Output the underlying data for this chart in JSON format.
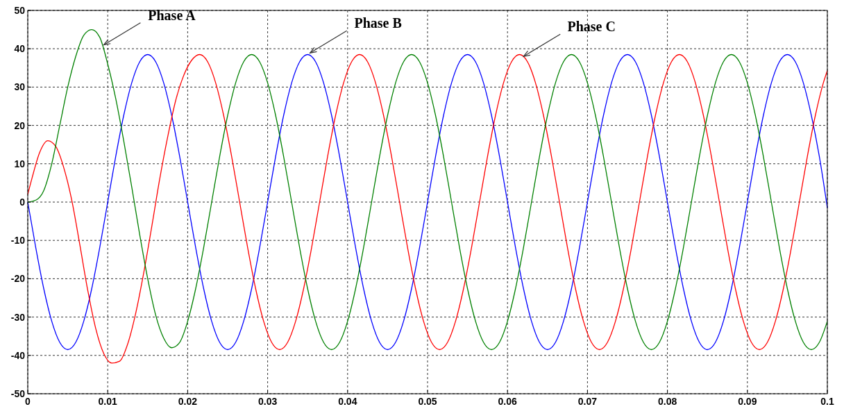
{
  "chart_data": {
    "type": "line",
    "xlim": [
      0,
      0.1
    ],
    "ylim": [
      -50,
      50
    ],
    "xticks": [
      0,
      0.01,
      0.02,
      0.03,
      0.04,
      0.05,
      0.06,
      0.07,
      0.08,
      0.09,
      0.1
    ],
    "yticks": [
      -50,
      -40,
      -30,
      -20,
      -10,
      0,
      10,
      20,
      30,
      40,
      50
    ],
    "grid": true,
    "line_style": "solid",
    "marker": "none",
    "annotations": [
      {
        "text": "Phase A",
        "x": 0.0095,
        "y": 41
      },
      {
        "text": "Phase B",
        "x": 0.0353,
        "y": 38.9
      },
      {
        "text": "Phase C",
        "x": 0.062,
        "y": 38
      }
    ],
    "x": [
      0,
      0.001,
      0.002,
      0.003,
      0.004,
      0.005,
      0.006,
      0.007,
      0.008,
      0.009,
      0.01,
      0.011,
      0.012,
      0.013,
      0.014,
      0.015,
      0.016,
      0.017,
      0.018,
      0.019,
      0.02,
      0.021,
      0.022,
      0.023,
      0.024,
      0.025,
      0.026,
      0.027,
      0.028,
      0.029,
      0.03,
      0.031,
      0.032,
      0.033,
      0.034,
      0.035,
      0.036,
      0.037,
      0.038,
      0.039,
      0.04,
      0.041,
      0.042,
      0.043,
      0.044,
      0.045,
      0.046,
      0.047,
      0.048,
      0.049,
      0.05,
      0.051,
      0.052,
      0.053,
      0.054,
      0.055,
      0.056,
      0.057,
      0.058,
      0.059,
      0.06,
      0.061,
      0.062,
      0.063,
      0.064,
      0.065,
      0.066,
      0.067,
      0.068,
      0.069,
      0.07,
      0.071,
      0.072,
      0.073,
      0.074,
      0.075,
      0.076,
      0.077,
      0.078,
      0.079,
      0.08,
      0.081,
      0.082,
      0.083,
      0.084,
      0.085,
      0.086,
      0.087,
      0.088,
      0.089,
      0.09,
      0.091,
      0.092,
      0.093,
      0.094,
      0.095,
      0.096,
      0.097,
      0.098,
      0.099,
      0.1
    ],
    "series": [
      {
        "color": "#0000ff",
        "values": [
          0,
          -11.9,
          -22.6,
          -31.1,
          -36.6,
          -38.5,
          -36.6,
          -31.1,
          -22.6,
          -11.9,
          0,
          11.9,
          22.6,
          31.1,
          36.6,
          38.5,
          36.6,
          31.1,
          22.6,
          11.9,
          0,
          -11.9,
          -22.6,
          -31.1,
          -36.6,
          -38.5,
          -36.6,
          -31.1,
          -22.6,
          -11.9,
          0,
          11.9,
          22.6,
          31.1,
          36.6,
          38.5,
          36.6,
          31.1,
          22.6,
          11.9,
          0,
          -11.9,
          -22.6,
          -31.1,
          -36.6,
          -38.5,
          -36.6,
          -31.1,
          -22.6,
          -11.9,
          0,
          11.9,
          22.6,
          31.1,
          36.6,
          38.5,
          36.6,
          31.1,
          22.6,
          11.9,
          0,
          -11.9,
          -22.6,
          -31.1,
          -36.6,
          -38.5,
          -36.6,
          -31.1,
          -22.6,
          -11.9,
          0,
          11.9,
          22.6,
          31.1,
          36.6,
          38.5,
          36.6,
          31.1,
          22.6,
          11.9,
          0,
          -11.9,
          -22.6,
          -31.1,
          -36.6,
          -38.5,
          -36.6,
          -31.1,
          -22.6,
          -11.9,
          0,
          11.9,
          22.6,
          31.1,
          36.6,
          38.5,
          36.6,
          31.1,
          22.6,
          11.9,
          -1.5
        ]
      },
      {
        "color": "#ff0000",
        "x": [
          0,
          0.0005,
          0.0015,
          0.0025,
          0.0035,
          0.0045,
          0.0055,
          0.0065,
          0.0075,
          0.0085,
          0.0095,
          0.0105,
          0.0115,
          0.0125,
          0.0135,
          0.0145,
          0.0155,
          0.0165,
          0.0175,
          0.0185,
          0.0195,
          0.0205,
          0.0215,
          0.0225,
          0.0235,
          0.0245,
          0.0255,
          0.0265,
          0.0275,
          0.0285,
          0.0295,
          0.0305,
          0.0315,
          0.0325,
          0.0335,
          0.0345,
          0.0355,
          0.0365,
          0.0375,
          0.0385,
          0.0395,
          0.0405,
          0.0415,
          0.0425,
          0.0435,
          0.0445,
          0.0455,
          0.0465,
          0.0475,
          0.0485,
          0.0495,
          0.0505,
          0.0515,
          0.0525,
          0.0535,
          0.0545,
          0.0555,
          0.0565,
          0.0575,
          0.0585,
          0.0595,
          0.0605,
          0.0615,
          0.0625,
          0.0635,
          0.0645,
          0.0655,
          0.0665,
          0.0675,
          0.0685,
          0.0695,
          0.0705,
          0.0715,
          0.0725,
          0.0735,
          0.0745,
          0.0755,
          0.0765,
          0.0775,
          0.0785,
          0.0795,
          0.0805,
          0.0815,
          0.0825,
          0.0835,
          0.0845,
          0.0855,
          0.0865,
          0.0875,
          0.0885,
          0.0895,
          0.0905,
          0.0915,
          0.0925,
          0.0935,
          0.0945,
          0.0955,
          0.0965,
          0.0975,
          0.0985,
          0.0995,
          0.1
        ],
        "values": [
          2,
          6,
          13,
          16,
          14.5,
          9,
          0.5,
          -11,
          -23,
          -33,
          -39.5,
          -42,
          -41.5,
          -37,
          -29,
          -18.5,
          -6.5,
          6,
          17,
          26.5,
          33,
          37,
          38.5,
          36.6,
          31.1,
          22.6,
          11.9,
          0,
          -11.9,
          -22.6,
          -31.1,
          -36.6,
          -38.5,
          -36.6,
          -31.1,
          -22.6,
          -11.9,
          0,
          11.9,
          22.6,
          31.1,
          36.6,
          38.5,
          36.6,
          31.1,
          22.6,
          11.9,
          0,
          -11.9,
          -22.6,
          -31.1,
          -36.6,
          -38.5,
          -36.6,
          -31.1,
          -22.6,
          -11.9,
          0,
          11.9,
          22.6,
          31.1,
          36.6,
          38.5,
          36.6,
          31.1,
          22.6,
          11.9,
          0,
          -11.9,
          -22.6,
          -31.1,
          -36.6,
          -38.5,
          -36.6,
          -31.1,
          -22.6,
          -11.9,
          0,
          11.9,
          22.6,
          31.1,
          36.6,
          38.5,
          36.6,
          31.1,
          22.6,
          11.9,
          0,
          -11.9,
          -22.6,
          -31.1,
          -36.6,
          -38.5,
          -36.6,
          -31.1,
          -22.6,
          -11.9,
          0,
          11.9,
          22.6,
          31.1,
          34.3
        ]
      },
      {
        "color": "#008000",
        "values": [
          0,
          0.5,
          3,
          10,
          20,
          30,
          38,
          43.5,
          45,
          43,
          36,
          27,
          16,
          4,
          -8.5,
          -20,
          -29.5,
          -35.5,
          -38,
          -36.6,
          -31.1,
          -22.6,
          -11.9,
          0,
          11.9,
          22.6,
          31.1,
          36.6,
          38.5,
          36.6,
          31.1,
          22.6,
          11.9,
          0,
          -11.9,
          -22.6,
          -31.1,
          -36.6,
          -38.5,
          -36.6,
          -31.1,
          -22.6,
          -11.9,
          0,
          11.9,
          22.6,
          31.1,
          36.6,
          38.5,
          36.6,
          31.1,
          22.6,
          11.9,
          0,
          -11.9,
          -22.6,
          -31.1,
          -36.6,
          -38.5,
          -36.6,
          -31.1,
          -22.6,
          -11.9,
          0,
          11.9,
          22.6,
          31.1,
          36.6,
          38.5,
          36.6,
          31.1,
          22.6,
          11.9,
          0,
          -11.9,
          -22.6,
          -31.1,
          -36.6,
          -38.5,
          -36.6,
          -31.1,
          -22.6,
          -11.9,
          0,
          11.9,
          22.6,
          31.1,
          36.6,
          38.5,
          36.6,
          31.1,
          22.6,
          11.9,
          0,
          -11.9,
          -22.6,
          -31.1,
          -36.6,
          -38.5,
          -36.6,
          -31.1
        ]
      }
    ]
  }
}
